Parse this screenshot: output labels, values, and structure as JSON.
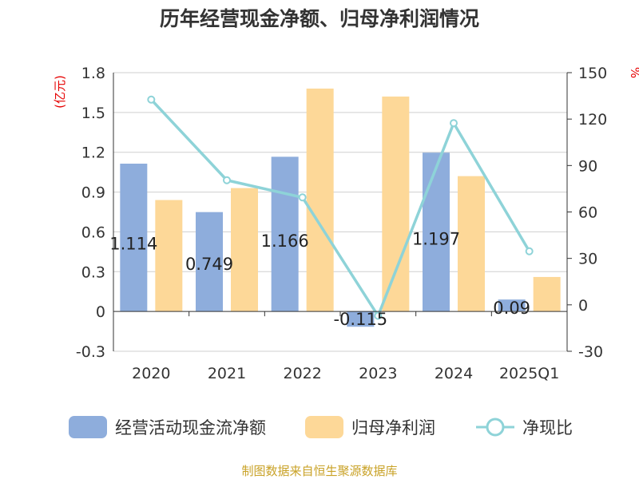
{
  "chart_data": {
    "type": "bar",
    "title": "历年经营现金净额、归母净利润情况",
    "categories": [
      "2020",
      "2021",
      "2022",
      "2023",
      "2024",
      "2025Q1"
    ],
    "series": [
      {
        "name": "经营活动现金流净额",
        "type": "bar",
        "axis": "left",
        "color": "#8eaddc",
        "values": [
          1.114,
          0.749,
          1.166,
          -0.115,
          1.197,
          0.09
        ],
        "labels": [
          "1.114",
          "0.749",
          "1.166",
          "-0.115",
          "1.197",
          "0.09"
        ]
      },
      {
        "name": "归母净利润",
        "type": "bar",
        "axis": "left",
        "color": "#fdd898",
        "values": [
          0.84,
          0.93,
          1.68,
          1.62,
          1.02,
          0.26
        ]
      },
      {
        "name": "净现比",
        "type": "line",
        "axis": "right",
        "color": "#8ed3d8",
        "values": [
          132.6,
          80.5,
          69.4,
          -7.1,
          117.4,
          34.6
        ]
      }
    ],
    "y_left": {
      "unit": "(亿元)",
      "min": -0.3,
      "max": 1.8,
      "ticks": [
        "1.8",
        "1.5",
        "1.2",
        "0.9",
        "0.6",
        "0.3",
        "0",
        "-0.3"
      ]
    },
    "y_right": {
      "unit": "%",
      "min": -30,
      "max": 150,
      "ticks": [
        "150",
        "120",
        "90",
        "60",
        "30",
        "0",
        "-30"
      ]
    },
    "grid": true,
    "legend_position": "bottom"
  },
  "source": "制图数据来自恒生聚源数据库"
}
